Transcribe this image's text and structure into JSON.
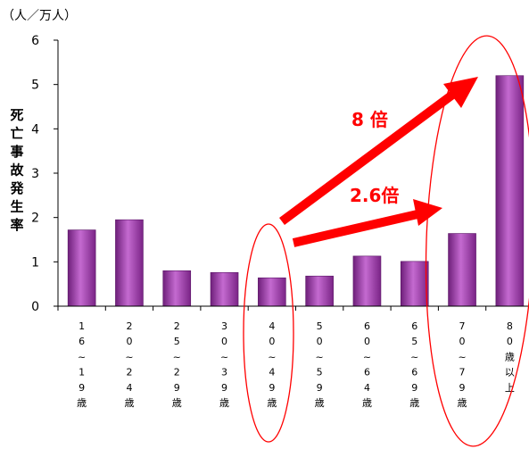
{
  "chart_data": {
    "type": "bar",
    "unit_label": "（人／万人）",
    "ylabel": "死亡事故発生率",
    "xlabel": "",
    "ylim": [
      0,
      6
    ],
    "yticks": [
      "0",
      "1",
      "2",
      "3",
      "4",
      "5",
      "6"
    ],
    "grid": false,
    "categories": [
      "16~19歳",
      "20~24歳",
      "25~29歳",
      "30~39歳",
      "40~49歳",
      "50~59歳",
      "60~64歳",
      "65~69歳",
      "70~79歳",
      "80歳以上"
    ],
    "category_lines": [
      [
        "1",
        "6",
        "~",
        "1",
        "9",
        "歳"
      ],
      [
        "2",
        "0",
        "~",
        "2",
        "4",
        "歳"
      ],
      [
        "2",
        "5",
        "~",
        "2",
        "9",
        "歳"
      ],
      [
        "3",
        "0",
        "~",
        "3",
        "9",
        "歳"
      ],
      [
        "4",
        "0",
        "~",
        "4",
        "9",
        "歳"
      ],
      [
        "5",
        "0",
        "~",
        "5",
        "9",
        "歳"
      ],
      [
        "6",
        "0",
        "~",
        "6",
        "4",
        "歳"
      ],
      [
        "6",
        "5",
        "~",
        "6",
        "9",
        "歳"
      ],
      [
        "7",
        "0",
        "~",
        "7",
        "9",
        "歳"
      ],
      [
        "8",
        "0",
        "歳",
        "以",
        "上"
      ]
    ],
    "values": [
      1.72,
      1.95,
      0.8,
      0.76,
      0.64,
      0.68,
      1.13,
      1.01,
      1.64,
      5.2
    ],
    "bar_color": "#9b3aa6",
    "annotations": [
      {
        "text": "8 倍",
        "from": "40~49歳",
        "to": "80歳以上",
        "color": "#ff0000"
      },
      {
        "text": "2.6倍",
        "from": "40~49歳",
        "to": "70~79歳",
        "color": "#ff0000"
      }
    ],
    "highlight_color": "#ff0000"
  }
}
